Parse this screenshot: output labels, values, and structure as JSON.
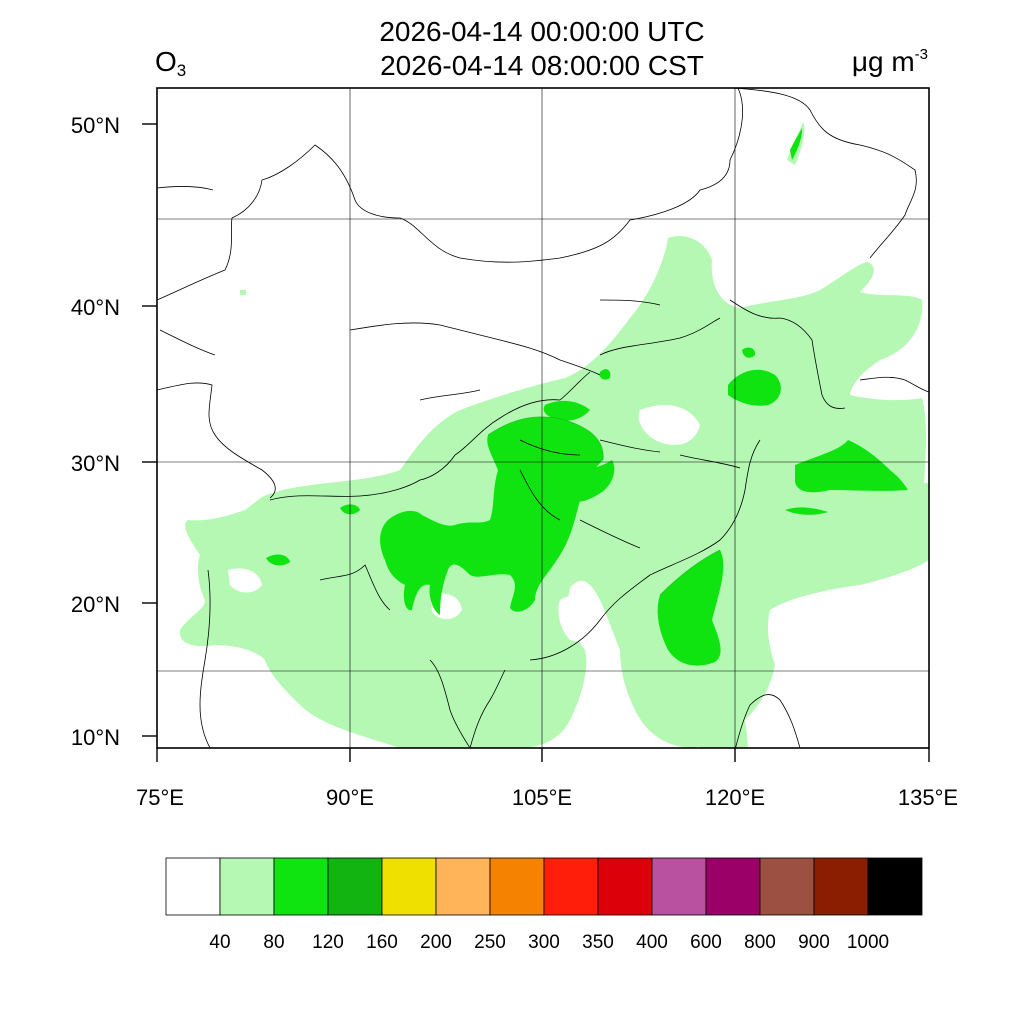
{
  "header": {
    "utc_time": "2026-04-14 00:00:00 UTC",
    "local_time": "2026-04-14 08:00:00 CST",
    "variable_main": "O",
    "variable_sub": "3",
    "unit_main": "μg m",
    "unit_sup": "-3"
  },
  "map": {
    "extent": {
      "lon": [
        75,
        135
      ],
      "lat": [
        9,
        52
      ]
    },
    "lat_labels": [
      {
        "value": 50,
        "text": "50°N"
      },
      {
        "value": 40,
        "text": "40°N"
      },
      {
        "value": 30,
        "text": "30°N"
      },
      {
        "value": 20,
        "text": "20°N"
      },
      {
        "value": 10,
        "text": "10°N"
      }
    ],
    "lon_labels": [
      {
        "value": 75,
        "text": "75°E"
      },
      {
        "value": 90,
        "text": "90°E"
      },
      {
        "value": 105,
        "text": "105°E"
      },
      {
        "value": 120,
        "text": "120°E"
      },
      {
        "value": 135,
        "text": "135°E"
      }
    ]
  },
  "colorbar": {
    "colors": [
      "#ffffff",
      "#b4f8b4",
      "#10e410",
      "#12b412",
      "#f0e000",
      "#ffb45a",
      "#f58200",
      "#ff1e0a",
      "#dc000a",
      "#b950a0",
      "#9b0069",
      "#9b5041",
      "#8c1e00",
      "#000000"
    ],
    "labels": [
      "40",
      "80",
      "120",
      "160",
      "200",
      "250",
      "300",
      "350",
      "400",
      "600",
      "800",
      "900",
      "1000"
    ]
  }
}
